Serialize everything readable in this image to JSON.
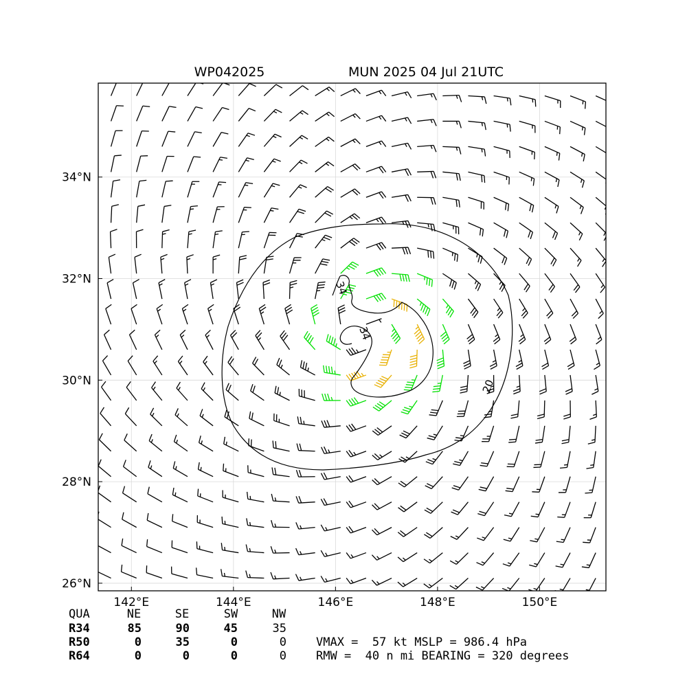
{
  "header": {
    "storm_id": "WP042025",
    "storm_info": "MUN 2025 04 Jul 21UTC"
  },
  "colors": {
    "below34": "#000000",
    "r34": "#00e000",
    "r50": "#e8b000",
    "contour": "#000000",
    "grid": "#d9d9d9"
  },
  "chart_data": {
    "type": "wind barb map",
    "xlabel": "",
    "ylabel": "",
    "xlim": [
      141.35,
      151.3
    ],
    "ylim": [
      25.85,
      35.85
    ],
    "x_ticks": [
      142,
      144,
      146,
      148,
      150
    ],
    "x_tick_labels": [
      "142°E",
      "144°E",
      "146°E",
      "148°E",
      "150°E"
    ],
    "y_ticks": [
      26,
      28,
      30,
      32,
      34
    ],
    "y_tick_labels": [
      "26°N",
      "28°N",
      "30°N",
      "32°N",
      "34°N"
    ],
    "grid": true,
    "center": {
      "lon": 146.6,
      "lat": 31.0
    },
    "wind_field": {
      "vmax_kt": 57,
      "rmw_nmi": 40,
      "bearing_deg": 320,
      "asymmetric_bias": "northeast and southeast strongest"
    },
    "wind_radii": {
      "header": [
        "QUA",
        "NE",
        "SE",
        "SW",
        "NW"
      ],
      "rows": [
        {
          "label": "R34",
          "values": [
            "85",
            "90",
            "45",
            "35"
          ]
        },
        {
          "label": "R50",
          "values": [
            "0",
            "35",
            "0",
            "0"
          ]
        },
        {
          "label": "R64",
          "values": [
            "0",
            "0",
            "0",
            "0"
          ]
        }
      ]
    },
    "contours": [
      {
        "level": 34,
        "label": "34"
      },
      {
        "level": 20,
        "label": "20"
      }
    ],
    "barb_classes": [
      {
        "min_kt": 0,
        "max_kt": 34,
        "color": "#000000"
      },
      {
        "min_kt": 34,
        "max_kt": 50,
        "color": "#00e000"
      },
      {
        "min_kt": 50,
        "max_kt": 64,
        "color": "#e8b000"
      }
    ]
  },
  "footer": {
    "vmax_line": "VMAX =  57 kt MSLP = 986.4 hPa",
    "rmw_line": "RMW =  40 n mi BEARING = 320 degrees"
  }
}
